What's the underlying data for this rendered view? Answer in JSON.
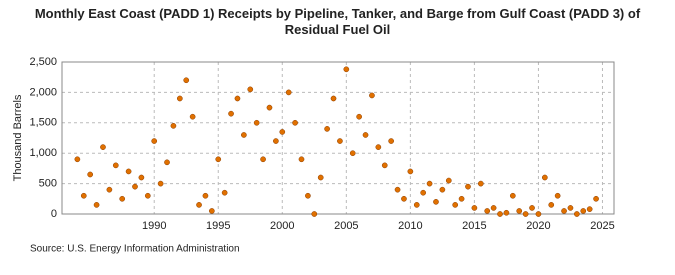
{
  "chart_data": {
    "type": "scatter",
    "title": "Monthly East Coast (PADD 1) Receipts by Pipeline, Tanker, and Barge from Gulf Coast (PADD 3) of Residual Fuel Oil",
    "y_label": "Thousand Barrels",
    "source": "Source: U.S. Energy Information Administration",
    "series": [
      {
        "name": "Receipts",
        "color": "#e07000",
        "x": [
          1984.0,
          1984.5,
          1985.0,
          1985.5,
          1986.0,
          1986.5,
          1987.0,
          1987.5,
          1988.0,
          1988.5,
          1989.0,
          1989.5,
          1990.0,
          1990.5,
          1991.0,
          1991.5,
          1992.0,
          1992.5,
          1993.0,
          1993.5,
          1994.0,
          1994.5,
          1995.0,
          1995.5,
          1996.0,
          1996.5,
          1997.0,
          1997.5,
          1998.0,
          1998.5,
          1999.0,
          1999.5,
          2000.0,
          2000.5,
          2001.0,
          2001.5,
          2002.0,
          2002.5,
          2003.0,
          2003.5,
          2004.0,
          2004.5,
          2005.0,
          2005.5,
          2006.0,
          2006.5,
          2007.0,
          2007.5,
          2008.0,
          2008.5,
          2009.0,
          2009.5,
          2010.0,
          2010.5,
          2011.0,
          2011.5,
          2012.0,
          2012.5,
          2013.0,
          2013.5,
          2014.0,
          2014.5,
          2015.0,
          2015.5,
          2016.0,
          2016.5,
          2017.0,
          2017.5,
          2018.0,
          2018.5,
          2019.0,
          2019.5,
          2020.0,
          2020.5,
          2021.0,
          2021.5,
          2022.0,
          2022.5,
          2023.0,
          2023.5,
          2024.0,
          2024.5
        ],
        "values": [
          900,
          300,
          650,
          150,
          1100,
          400,
          800,
          250,
          700,
          450,
          600,
          300,
          1200,
          500,
          850,
          1450,
          1900,
          2200,
          1600,
          150,
          300,
          50,
          900,
          350,
          1650,
          1900,
          1300,
          2050,
          1500,
          900,
          1750,
          1200,
          1350,
          2000,
          1500,
          900,
          300,
          0,
          600,
          1400,
          1900,
          1200,
          2380,
          1000,
          1600,
          1300,
          1950,
          1100,
          800,
          1200,
          400,
          250,
          700,
          150,
          350,
          500,
          200,
          400,
          550,
          150,
          250,
          450,
          100,
          500,
          50,
          100,
          0,
          20,
          300,
          50,
          0,
          100,
          0,
          600,
          150,
          300,
          50,
          100,
          0,
          50,
          80,
          250
        ]
      }
    ],
    "xlim": [
      1982.8,
      2025.9
    ],
    "xticks": [
      1990,
      1995,
      2000,
      2005,
      2010,
      2015,
      2020,
      2025
    ],
    "ylim": [
      0,
      2500
    ],
    "yticks": [
      0,
      500,
      {
        "value": 1000,
        "label": "1,000"
      },
      {
        "value": 1500,
        "label": "1,500"
      },
      {
        "value": 2000,
        "label": "2,000"
      },
      {
        "value": 2500,
        "label": "2,500"
      }
    ],
    "grid": true
  }
}
